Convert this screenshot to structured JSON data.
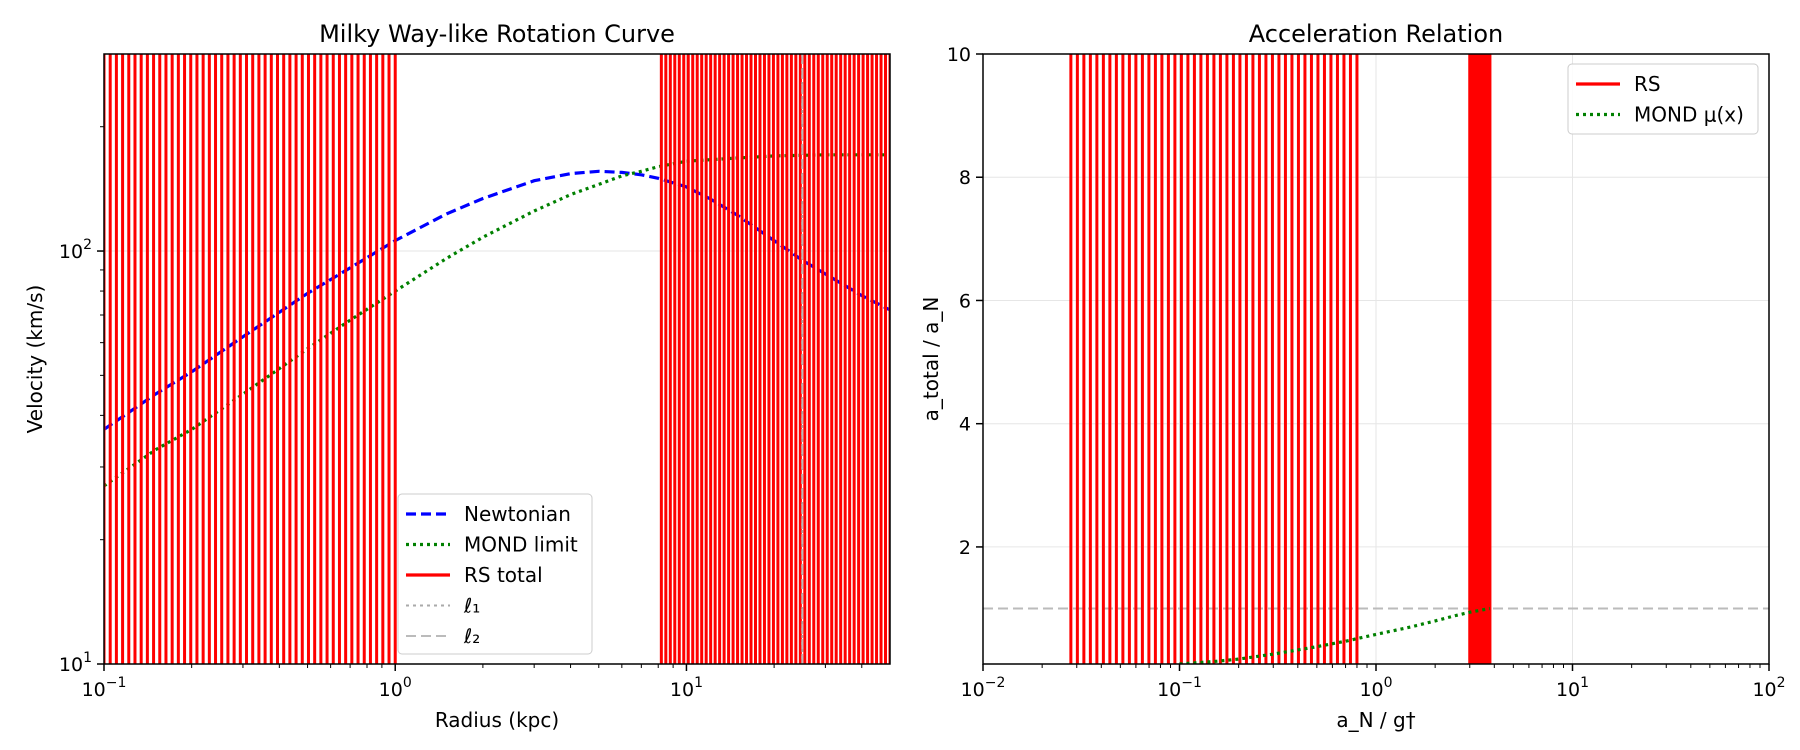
{
  "chart_data": [
    {
      "type": "line",
      "title": "Milky Way-like Rotation Curve",
      "xlabel": "Radius (kpc)",
      "ylabel": "Velocity (km/s)",
      "xscale": "log",
      "yscale": "log",
      "xlim": [
        0.1,
        50
      ],
      "ylim": [
        10,
        300
      ],
      "xticks": [
        {
          "v": 0.1,
          "b": "10",
          "e": "−1"
        },
        {
          "v": 1,
          "b": "10",
          "e": "0"
        },
        {
          "v": 10,
          "b": "10",
          "e": "1"
        }
      ],
      "yticks": [
        {
          "v": 10,
          "b": "10",
          "e": "1"
        },
        {
          "v": 100,
          "b": "10",
          "e": "2"
        }
      ],
      "grid": true,
      "legend_position": "lower-center",
      "series": [
        {
          "name": "Newtonian",
          "color": "#0000ff",
          "style": "dashed",
          "x": [
            0.1,
            0.15,
            0.2,
            0.3,
            0.5,
            0.7,
            1.0,
            1.5,
            2.0,
            3.0,
            4.0,
            5.0,
            6.0,
            7.0,
            8.0,
            10.0,
            12.0,
            15.0,
            20.0,
            25.0,
            30.0,
            40.0,
            50.0
          ],
          "y": [
            37,
            45,
            51,
            62,
            79,
            91,
            106,
            123,
            134,
            148,
            154,
            156,
            155,
            153,
            150,
            143,
            134,
            122,
            106,
            95,
            88,
            78,
            72
          ]
        },
        {
          "name": "MOND limit",
          "color": "#008000",
          "style": "dotted",
          "x": [
            0.1,
            0.15,
            0.2,
            0.3,
            0.5,
            0.7,
            1.0,
            1.5,
            2.0,
            3.0,
            4.0,
            5.0,
            6.0,
            7.0,
            8.0,
            10.0,
            15.0,
            20.0,
            30.0,
            50.0
          ],
          "y": [
            27,
            33,
            37,
            45,
            58,
            68,
            80,
            96,
            108,
            125,
            137,
            145,
            152,
            156,
            160,
            165,
            168,
            170,
            171,
            171
          ]
        },
        {
          "name": "RS total",
          "color": "#ff0000",
          "style": "solid",
          "render": "vertical-bands",
          "x_ranges": [
            [
              0.1,
              1.0
            ],
            [
              8.2,
              50
            ]
          ],
          "line_count": [
            48,
            52
          ]
        },
        {
          "name": "ℓ₁",
          "color": "#aaaaaa",
          "style": "dotted",
          "render": "vline",
          "x": 25
        },
        {
          "name": "ℓ₂",
          "color": "#bbbbbb",
          "style": "dashed",
          "render": "vline",
          "x": 25
        }
      ]
    },
    {
      "type": "line",
      "title": "Acceleration Relation",
      "xlabel": "a_N / g†",
      "ylabel": "a_total / a_N",
      "xscale": "log",
      "yscale": "linear",
      "xlim": [
        0.01,
        100
      ],
      "ylim": [
        0.1,
        10
      ],
      "xticks": [
        {
          "v": 0.01,
          "b": "10",
          "e": "−2"
        },
        {
          "v": 0.1,
          "b": "10",
          "e": "−1"
        },
        {
          "v": 1,
          "b": "10",
          "e": "0"
        },
        {
          "v": 10,
          "b": "10",
          "e": "1"
        },
        {
          "v": 100,
          "b": "10",
          "e": "2"
        }
      ],
      "yticks": [
        {
          "v": 2,
          "t": "2"
        },
        {
          "v": 4,
          "t": "4"
        },
        {
          "v": 6,
          "t": "6"
        },
        {
          "v": 8,
          "t": "8"
        },
        {
          "v": 10,
          "t": "10"
        }
      ],
      "grid": true,
      "legend_position": "upper-right",
      "reference_line": {
        "y": 1.0,
        "color": "#bbbbbb",
        "style": "dashed"
      },
      "series": [
        {
          "name": "RS",
          "color": "#ff0000",
          "style": "solid",
          "render": "vertical-bands",
          "x_ranges": [
            [
              0.028,
              0.8
            ],
            [
              3.0,
              3.8
            ]
          ],
          "line_count": [
            45,
            12
          ]
        },
        {
          "name": "MOND μ(x)",
          "color": "#008000",
          "style": "dotted",
          "x": [
            0.1,
            0.15,
            0.2,
            0.3,
            0.5,
            0.7,
            1.0,
            1.5,
            2.0,
            2.5,
            3.0,
            3.5,
            3.8
          ],
          "y": [
            0.1,
            0.14,
            0.18,
            0.26,
            0.38,
            0.47,
            0.58,
            0.7,
            0.8,
            0.88,
            0.94,
            0.98,
            1.0
          ]
        }
      ]
    }
  ]
}
